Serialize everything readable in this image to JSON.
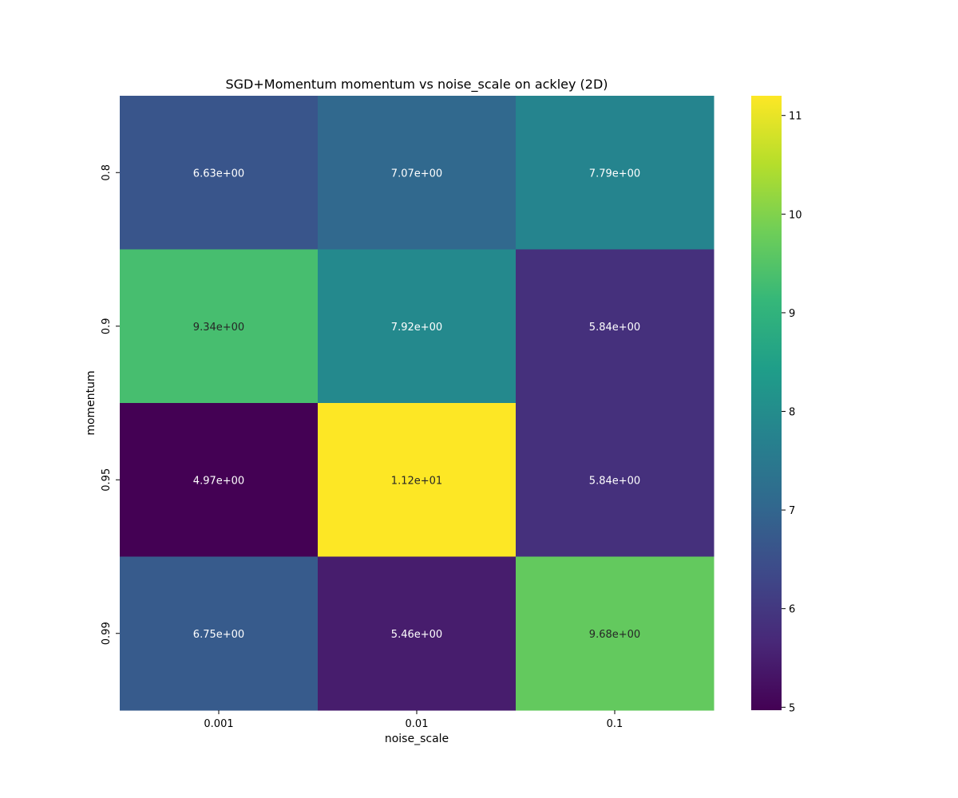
{
  "chart_data": {
    "type": "heatmap",
    "title": "SGD+Momentum momentum vs noise_scale on ackley (2D)",
    "xlabel": "noise_scale",
    "ylabel": "momentum",
    "x_categories": [
      "0.001",
      "0.01",
      "0.1"
    ],
    "y_categories": [
      "0.8",
      "0.9",
      "0.95",
      "0.99"
    ],
    "values": [
      [
        6.63,
        7.07,
        7.79
      ],
      [
        9.34,
        7.92,
        5.84
      ],
      [
        4.97,
        11.2,
        5.84
      ],
      [
        6.75,
        5.46,
        9.68
      ]
    ],
    "annotations": [
      [
        "6.63e+00",
        "7.07e+00",
        "7.79e+00"
      ],
      [
        "9.34e+00",
        "7.92e+00",
        "5.84e+00"
      ],
      [
        "4.97e+00",
        "1.12e+01",
        "5.84e+00"
      ],
      [
        "6.75e+00",
        "5.46e+00",
        "9.68e+00"
      ]
    ],
    "colormap": "viridis",
    "color_range": [
      4.97,
      11.2
    ],
    "colorbar_ticks": [
      5,
      6,
      7,
      8,
      9,
      10,
      11
    ],
    "colorbar_tick_labels": [
      "5",
      "6",
      "7",
      "8",
      "9",
      "10",
      "11"
    ]
  }
}
